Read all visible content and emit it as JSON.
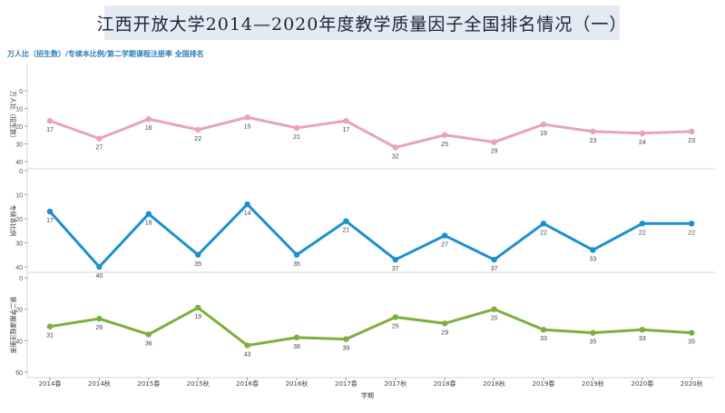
{
  "title": "江西开放大学2014—2020年度教学质量因子全国排名情况（一）",
  "subtitle": "万人比（招生数）/专续本比例/第二学期课程注册率 全国排名",
  "colors": {
    "pink": "#e8a2bd",
    "blue": "#1d8fcf",
    "green": "#7eaf3c"
  },
  "chart_data": {
    "type": "line",
    "xlabel": "学期",
    "categories": [
      "2014春",
      "2014秋",
      "2015春",
      "2015秋",
      "2016春",
      "2016秋",
      "2017春",
      "2017秋",
      "2018春",
      "2018秋",
      "2019春",
      "2019秋",
      "2020春",
      "2020秋"
    ],
    "panels": [
      {
        "ylabel": "万人比（招生数）",
        "ylim": [
          0,
          40
        ],
        "ticks": [
          0,
          10,
          20,
          30,
          40
        ],
        "inverted": true,
        "color": "#e8a2bd",
        "values": [
          17,
          27,
          16,
          22,
          15,
          21,
          17,
          32,
          25,
          29,
          19,
          23,
          24,
          23
        ]
      },
      {
        "ylabel": "专续本比例",
        "ylim": [
          0,
          40
        ],
        "ticks": [
          0,
          10,
          20,
          30,
          40
        ],
        "inverted": true,
        "color": "#1d8fcf",
        "values": [
          17,
          40,
          18,
          35,
          14,
          35,
          21,
          37,
          27,
          37,
          22,
          33,
          22,
          22
        ]
      },
      {
        "ylabel": "第二学期课程注册率",
        "ylim": [
          0,
          60
        ],
        "ticks": [
          0,
          20,
          40,
          60
        ],
        "inverted": true,
        "color": "#7eaf3c",
        "values": [
          31,
          26,
          36,
          19,
          43,
          38,
          39,
          25,
          29,
          20,
          33,
          35,
          33,
          35
        ]
      }
    ],
    "grid": false
  }
}
